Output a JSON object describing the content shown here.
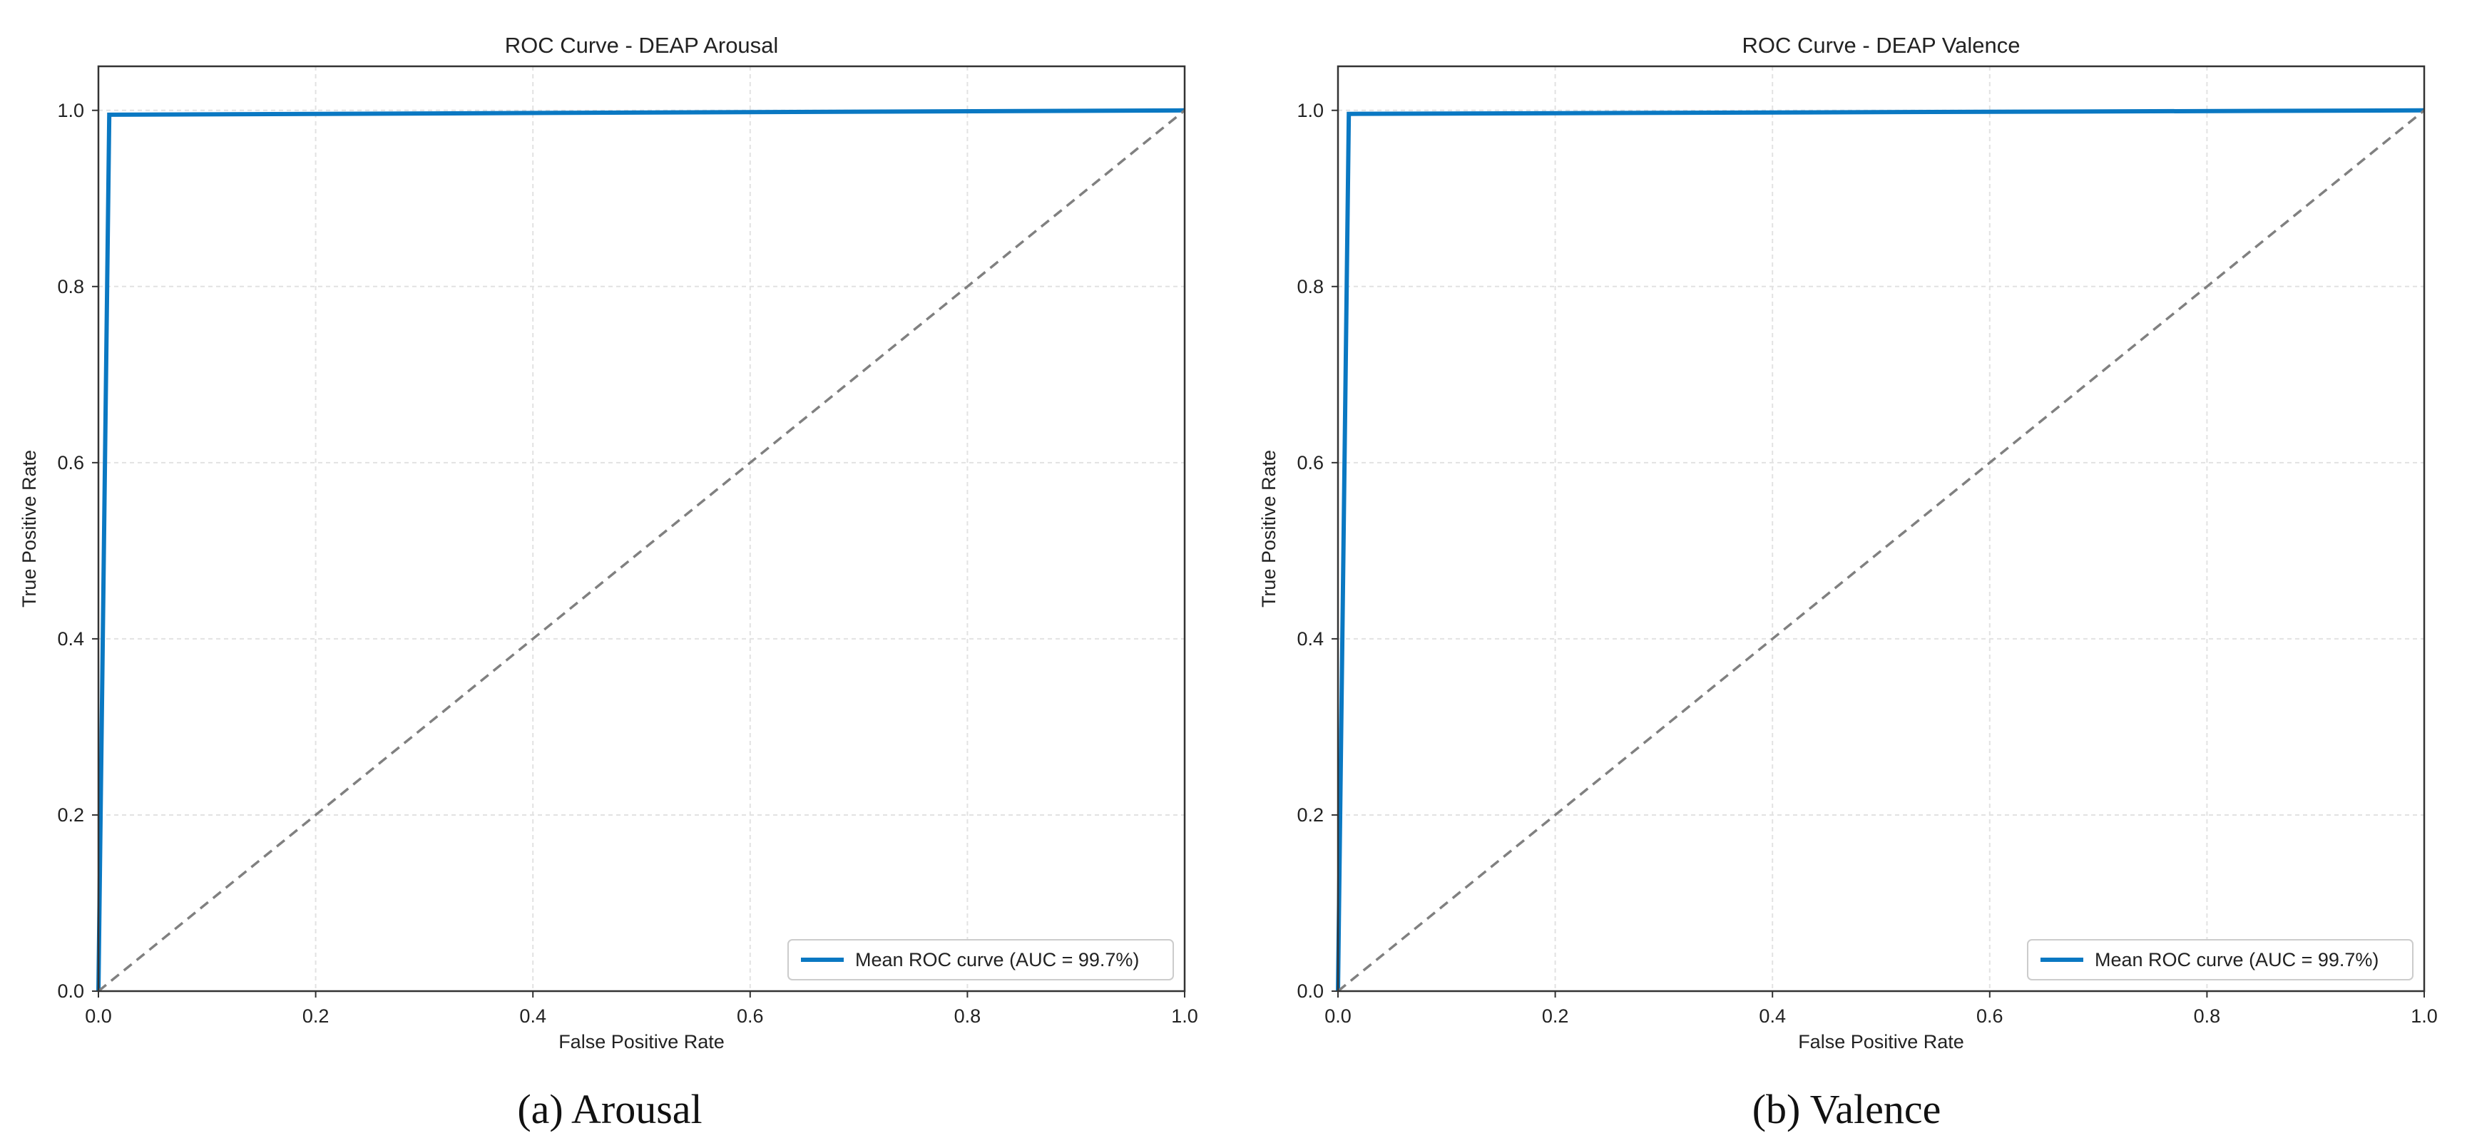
{
  "colors": {
    "roc_line": "#0a78c2",
    "chance_line": "#808080",
    "axes": "#333333",
    "grid": "#e2e2e2",
    "legend_border": "#cccccc"
  },
  "chart_data": [
    {
      "type": "line",
      "title": "ROC Curve - DEAP Arousal",
      "caption": "(a) Arousal",
      "xlabel": "False Positive Rate",
      "ylabel": "True Positive Rate",
      "xlim": [
        0.0,
        1.0
      ],
      "ylim": [
        0.0,
        1.05
      ],
      "grid": true,
      "xticks": [
        0.0,
        0.2,
        0.4,
        0.6,
        0.8,
        1.0
      ],
      "yticks": [
        0.0,
        0.2,
        0.4,
        0.6,
        0.8,
        1.0
      ],
      "xtick_labels": [
        "0.0",
        "0.2",
        "0.4",
        "0.6",
        "0.8",
        "1.0"
      ],
      "ytick_labels": [
        "0.0",
        "0.2",
        "0.4",
        "0.6",
        "0.8",
        "1.0"
      ],
      "legend_position": "lower-right",
      "series": [
        {
          "name": "Mean ROC curve (AUC = 99.7%)",
          "x": [
            0.0,
            0.01,
            1.0
          ],
          "y": [
            0.0,
            0.995,
            1.0
          ],
          "style": "solid"
        },
        {
          "name": "",
          "x": [
            0.0,
            1.0
          ],
          "y": [
            0.0,
            1.0
          ],
          "style": "dashed"
        }
      ]
    },
    {
      "type": "line",
      "title": "ROC Curve - DEAP Valence",
      "caption": "(b) Valence",
      "xlabel": "False Positive Rate",
      "ylabel": "True Positive Rate",
      "xlim": [
        0.0,
        1.0
      ],
      "ylim": [
        0.0,
        1.05
      ],
      "grid": true,
      "xticks": [
        0.0,
        0.2,
        0.4,
        0.6,
        0.8,
        1.0
      ],
      "yticks": [
        0.0,
        0.2,
        0.4,
        0.6,
        0.8,
        1.0
      ],
      "xtick_labels": [
        "0.0",
        "0.2",
        "0.4",
        "0.6",
        "0.8",
        "1.0"
      ],
      "ytick_labels": [
        "0.0",
        "0.2",
        "0.4",
        "0.6",
        "0.8",
        "1.0"
      ],
      "legend_position": "lower-right",
      "series": [
        {
          "name": "Mean ROC curve (AUC = 99.7%)",
          "x": [
            0.0,
            0.01,
            1.0
          ],
          "y": [
            0.0,
            0.996,
            1.0
          ],
          "style": "solid"
        },
        {
          "name": "",
          "x": [
            0.0,
            1.0
          ],
          "y": [
            0.0,
            1.0
          ],
          "style": "dashed"
        }
      ]
    }
  ]
}
